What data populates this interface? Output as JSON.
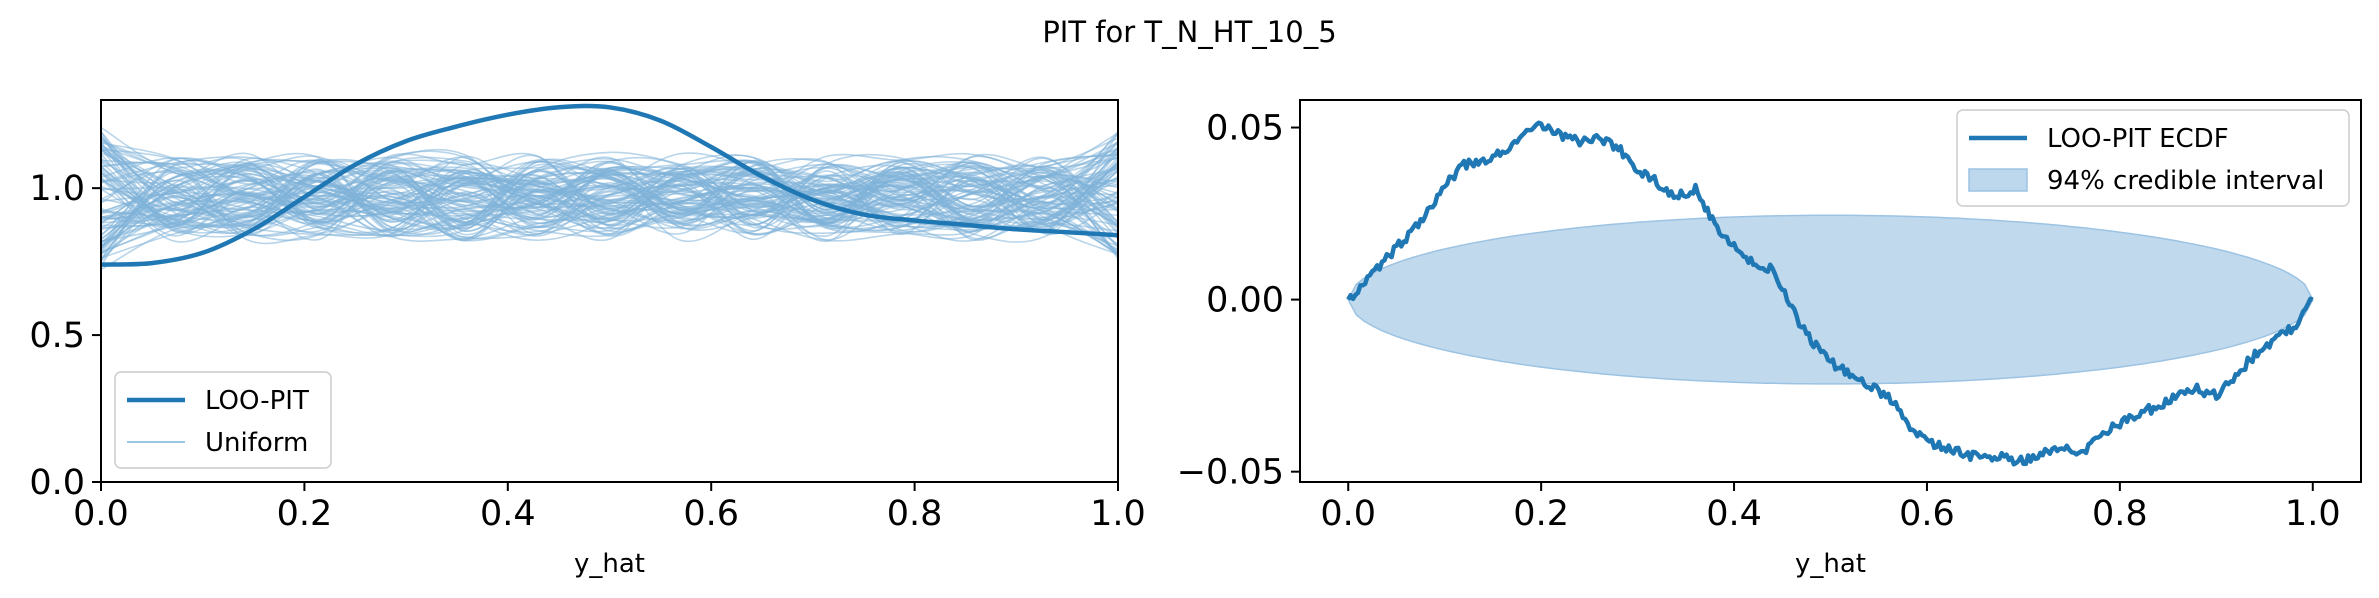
{
  "figure": {
    "title": "PIT for T_N_HT_10_5"
  },
  "colors": {
    "main": "#1f77b4",
    "uniform": "#7fb2d9",
    "band": "#bdd7ec",
    "band_edge": "#9cc3e3"
  },
  "chart_data": [
    {
      "type": "line",
      "name": "loo-pit-kde",
      "title": "",
      "xlabel": "y_hat",
      "ylabel": "",
      "xlim": [
        0,
        1
      ],
      "ylim": [
        0,
        1.3
      ],
      "xticks": [
        0.0,
        0.2,
        0.4,
        0.6,
        0.8,
        1.0
      ],
      "xtick_labels": [
        "0.0",
        "0.2",
        "0.4",
        "0.6",
        "0.8",
        "1.0"
      ],
      "yticks": [
        0.0,
        0.5,
        1.0
      ],
      "ytick_labels": [
        "0.0",
        "0.5",
        "1.0"
      ],
      "grid": false,
      "legend": {
        "placement": "lower-left",
        "entries": [
          {
            "label": "LOO-PIT",
            "style": "thick"
          },
          {
            "label": "Uniform",
            "style": "thin"
          }
        ]
      },
      "series": [
        {
          "name": "LOO-PIT",
          "x": [
            0.0,
            0.05,
            0.1,
            0.15,
            0.2,
            0.25,
            0.3,
            0.35,
            0.4,
            0.45,
            0.5,
            0.55,
            0.6,
            0.65,
            0.7,
            0.75,
            0.8,
            0.85,
            0.9,
            0.95,
            1.0
          ],
          "y": [
            0.74,
            0.745,
            0.78,
            0.86,
            0.97,
            1.08,
            1.16,
            1.21,
            1.25,
            1.275,
            1.275,
            1.23,
            1.14,
            1.04,
            0.96,
            0.91,
            0.89,
            0.875,
            0.86,
            0.85,
            0.84
          ]
        }
      ],
      "uniform_samples": {
        "label": "Uniform",
        "count": 100,
        "y_range": [
          0.72,
          1.22
        ]
      }
    },
    {
      "type": "line",
      "name": "loo-pit-ecdf",
      "title": "",
      "xlabel": "y_hat",
      "ylabel": "",
      "xlim": [
        -0.05,
        1.05
      ],
      "ylim": [
        -0.053,
        0.058
      ],
      "xticks": [
        0.0,
        0.2,
        0.4,
        0.6,
        0.8,
        1.0
      ],
      "xtick_labels": [
        "0.0",
        "0.2",
        "0.4",
        "0.6",
        "0.8",
        "1.0"
      ],
      "yticks": [
        -0.05,
        0.0,
        0.05
      ],
      "ytick_labels": [
        "−0.05",
        "0.00",
        "0.05"
      ],
      "grid": false,
      "legend": {
        "placement": "top-right",
        "entries": [
          {
            "label": "LOO-PIT ECDF",
            "style": "line"
          },
          {
            "label": "94% credible interval",
            "style": "patch"
          }
        ]
      },
      "series": [
        {
          "name": "LOO-PIT ECDF",
          "x": [
            0.0,
            0.02,
            0.04,
            0.06,
            0.08,
            0.1,
            0.12,
            0.14,
            0.16,
            0.18,
            0.2,
            0.22,
            0.24,
            0.26,
            0.28,
            0.3,
            0.32,
            0.34,
            0.36,
            0.38,
            0.4,
            0.42,
            0.44,
            0.46,
            0.48,
            0.5,
            0.52,
            0.54,
            0.56,
            0.58,
            0.6,
            0.62,
            0.64,
            0.66,
            0.68,
            0.7,
            0.72,
            0.74,
            0.76,
            0.78,
            0.8,
            0.82,
            0.84,
            0.86,
            0.88,
            0.9,
            0.92,
            0.94,
            0.96,
            0.98,
            1.0
          ],
          "y": [
            0.0,
            0.006,
            0.012,
            0.018,
            0.025,
            0.033,
            0.039,
            0.04,
            0.043,
            0.047,
            0.051,
            0.048,
            0.046,
            0.047,
            0.044,
            0.038,
            0.034,
            0.03,
            0.032,
            0.022,
            0.016,
            0.01,
            0.009,
            -0.003,
            -0.012,
            -0.018,
            -0.022,
            -0.025,
            -0.028,
            -0.036,
            -0.041,
            -0.043,
            -0.045,
            -0.046,
            -0.046,
            -0.047,
            -0.044,
            -0.043,
            -0.045,
            -0.039,
            -0.036,
            -0.033,
            -0.031,
            -0.028,
            -0.026,
            -0.028,
            -0.022,
            -0.016,
            -0.012,
            -0.008,
            0.0
          ]
        }
      ],
      "credible_interval": {
        "label": "94% credible interval",
        "x": [
          0.0,
          1.0
        ],
        "center": 0.0,
        "half_width_max": 0.0245
      }
    }
  ]
}
